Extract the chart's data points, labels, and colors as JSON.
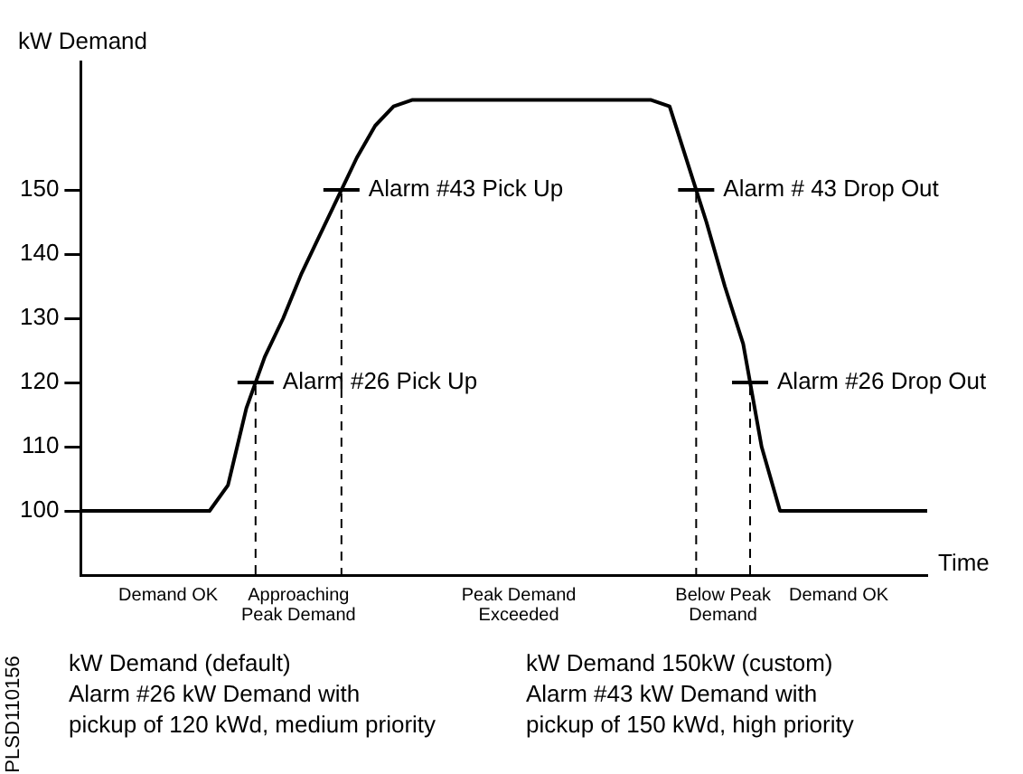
{
  "chart_data": {
    "type": "line",
    "ylabel": "kW Demand",
    "xlabel": "Time",
    "categories": [
      null,
      null,
      null,
      null,
      null,
      null,
      null,
      null,
      null,
      null,
      null,
      null,
      null,
      null,
      null,
      null,
      null,
      null,
      null,
      null,
      null,
      null,
      null,
      null,
      null,
      null,
      null,
      null,
      null,
      null,
      null,
      null,
      null,
      null,
      null,
      null,
      null,
      null,
      null,
      null,
      null,
      null,
      null,
      null,
      null,
      null,
      null
    ],
    "series": [
      {
        "color": "#000000",
        "values": [
          100,
          100,
          100,
          100,
          100,
          100,
          100,
          100,
          104,
          116,
          124,
          130,
          137,
          143,
          149,
          155,
          160,
          163,
          164,
          164,
          164,
          164,
          164,
          164,
          164,
          164,
          164,
          164,
          164,
          164,
          164,
          164,
          163,
          154,
          145,
          135,
          126,
          110,
          100,
          100,
          100,
          100,
          100,
          100,
          100,
          100,
          100
        ]
      }
    ],
    "ylim": [
      90,
      170
    ],
    "yticks": [
      100,
      110,
      120,
      130,
      140,
      150
    ],
    "tick_labels": "y",
    "grid": false,
    "legend": false,
    "marker": "none",
    "line_style": "solid",
    "ref_lines": [
      {
        "axis": "y",
        "value": 120,
        "label": "Alarm #26 Pick Up"
      },
      {
        "axis": "y",
        "value": 150,
        "label": "Alarm #43 Pick Up"
      },
      {
        "axis": "y",
        "value": 150,
        "label": "Alarm # 43 Drop Out"
      },
      {
        "axis": "y",
        "value": 120,
        "label": "Alarm #26 Drop Out"
      }
    ],
    "annotations": [
      "Demand OK",
      "Approaching\nPeak Demand",
      "Peak Demand\nExceeded",
      "Below Peak\nDemand",
      "Demand OK",
      "kW Demand (default)\nAlarm #26 kW Demand with\npickup of 120 kWd, medium priority",
      "kW Demand 150kW (custom)\nAlarm #43 kW Demand with\npickup of 150 kWd, high priority",
      "PLSD110156"
    ]
  }
}
